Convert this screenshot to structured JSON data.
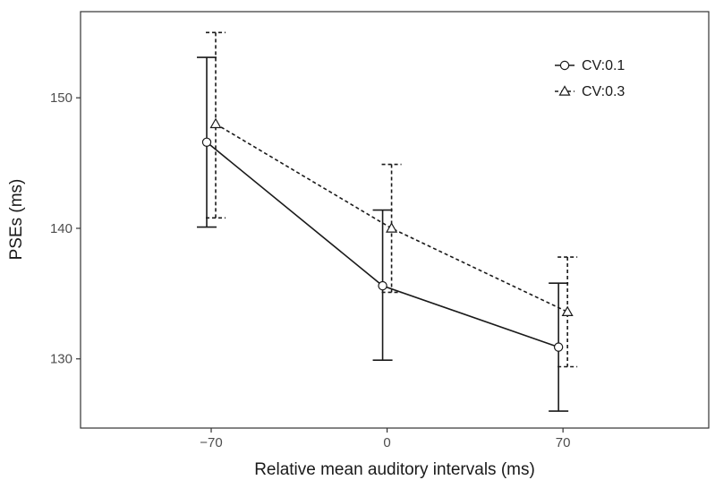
{
  "chart_data": {
    "type": "line",
    "title": "",
    "xlabel": "Relative mean auditory intervals (ms)",
    "ylabel": "PSEs (ms)",
    "x": [
      -70,
      0,
      70
    ],
    "x_tick_labels": [
      "−70",
      "0",
      "70"
    ],
    "y_ticks": [
      130,
      140,
      150
    ],
    "xlim": [
      -122,
      128
    ],
    "ylim": [
      124.7,
      156.6
    ],
    "grid": false,
    "legend_position": "top-right",
    "color": "#1a1a1a",
    "series": [
      {
        "name": "CV:0.1",
        "marker": "circle",
        "linestyle": "solid",
        "values": [
          146.6,
          135.6,
          130.9
        ],
        "error_low": [
          140.1,
          129.9,
          126.0
        ],
        "error_high": [
          153.1,
          141.4,
          135.8
        ]
      },
      {
        "name": "CV:0.3",
        "marker": "triangle",
        "linestyle": "dashed",
        "values": [
          148.0,
          140.0,
          133.6
        ],
        "error_low": [
          140.8,
          135.1,
          129.4
        ],
        "error_high": [
          155.0,
          144.9,
          137.8
        ]
      }
    ]
  }
}
